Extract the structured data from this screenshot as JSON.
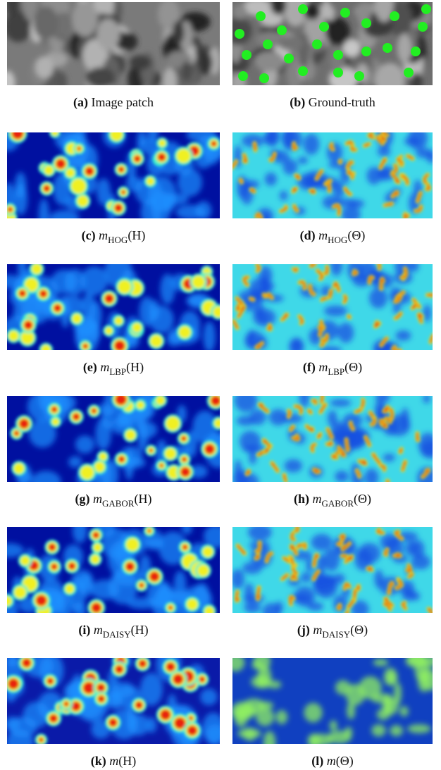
{
  "panels": [
    {
      "label": "(a)",
      "text": "Image patch"
    },
    {
      "label": "(b)",
      "text": "Ground-truth"
    },
    {
      "label": "(c)",
      "symbol": "m",
      "subscript": "HOG",
      "argument": "(H)"
    },
    {
      "label": "(d)",
      "symbol": "m",
      "subscript": "HOG",
      "argument": "(Θ)"
    },
    {
      "label": "(e)",
      "symbol": "m",
      "subscript": "LBP",
      "argument": "(H)"
    },
    {
      "label": "(f)",
      "symbol": "m",
      "subscript": "LBP",
      "argument": "(Θ)"
    },
    {
      "label": "(g)",
      "symbol": "m",
      "subscript": "GABOR",
      "argument": "(H)"
    },
    {
      "label": "(h)",
      "symbol": "m",
      "subscript": "GABOR",
      "argument": "(Θ)"
    },
    {
      "label": "(i)",
      "symbol": "m",
      "subscript": "DAISY",
      "argument": "(H)"
    },
    {
      "label": "(j)",
      "symbol": "m",
      "subscript": "DAISY",
      "argument": "(Θ)"
    },
    {
      "label": "(k)",
      "symbol": "m",
      "argument": "(H)"
    },
    {
      "label": "(l)",
      "symbol": "m",
      "argument": "(Θ)"
    }
  ]
}
